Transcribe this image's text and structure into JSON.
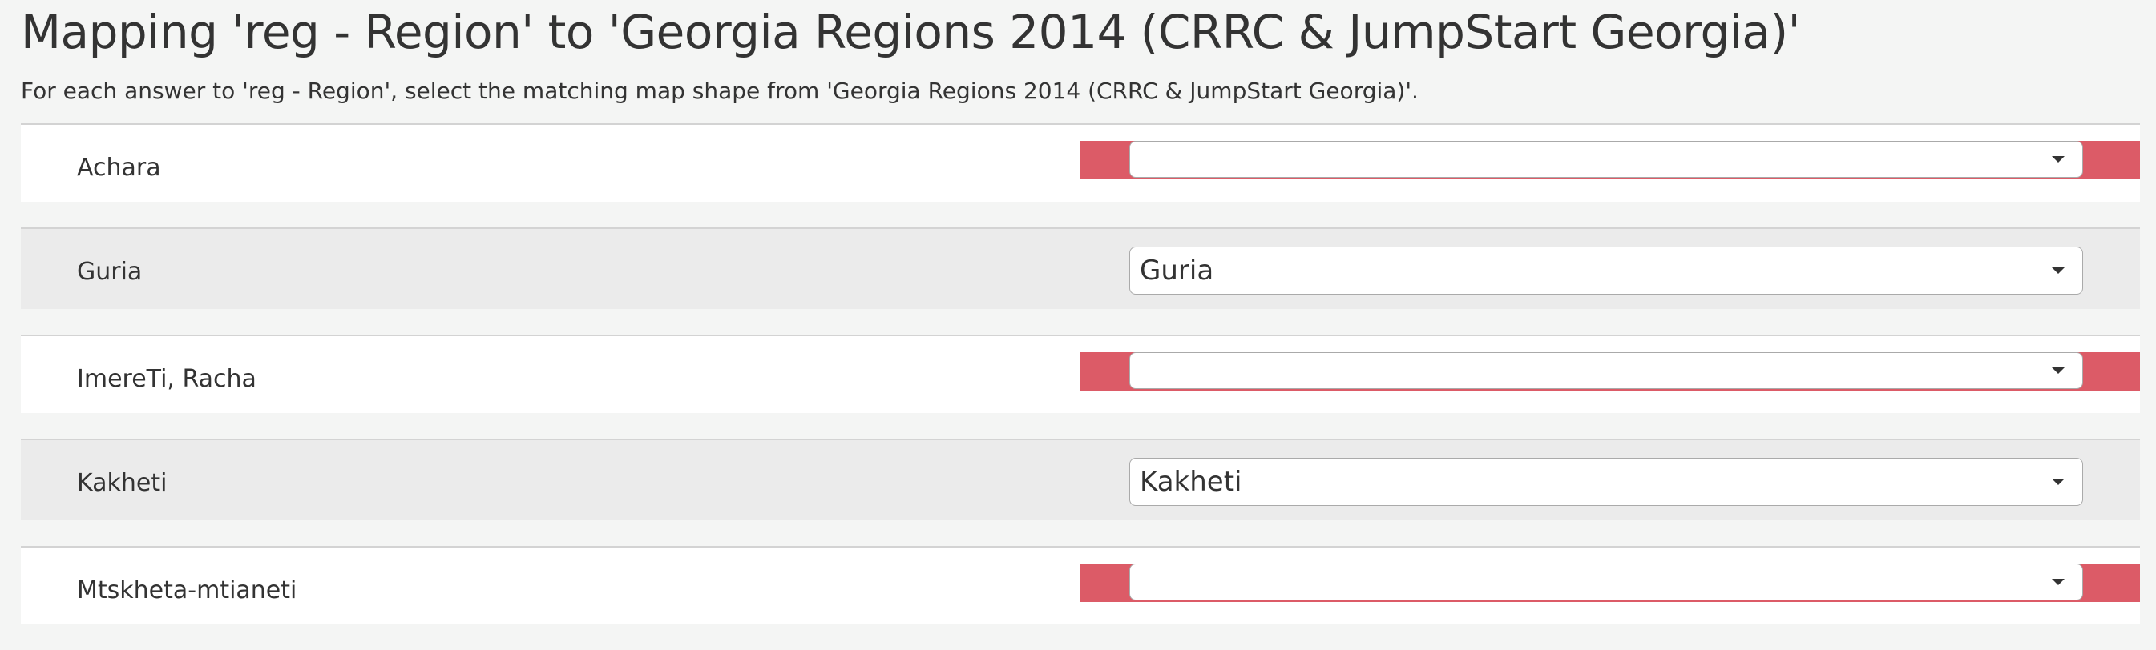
{
  "page": {
    "title": "Mapping 'reg - Region' to 'Georgia Regions 2014 (CRRC & JumpStart Georgia)'",
    "subtitle": "For each answer to 'reg - Region', select the matching map shape from 'Georgia Regions 2014 (CRRC & JumpStart Georgia)'."
  },
  "colors": {
    "error_bar": "#dc5b67",
    "row_odd": "#ffffff",
    "row_even": "#ebebeb"
  },
  "rows": [
    {
      "label": "Achara",
      "selected": "",
      "error": true
    },
    {
      "label": "Guria",
      "selected": "Guria",
      "error": false
    },
    {
      "label": "ImereTi, Racha",
      "selected": "",
      "error": true
    },
    {
      "label": "Kakheti",
      "selected": "Kakheti",
      "error": false
    },
    {
      "label": "Mtskheta-mtianeti",
      "selected": "",
      "error": true
    }
  ]
}
